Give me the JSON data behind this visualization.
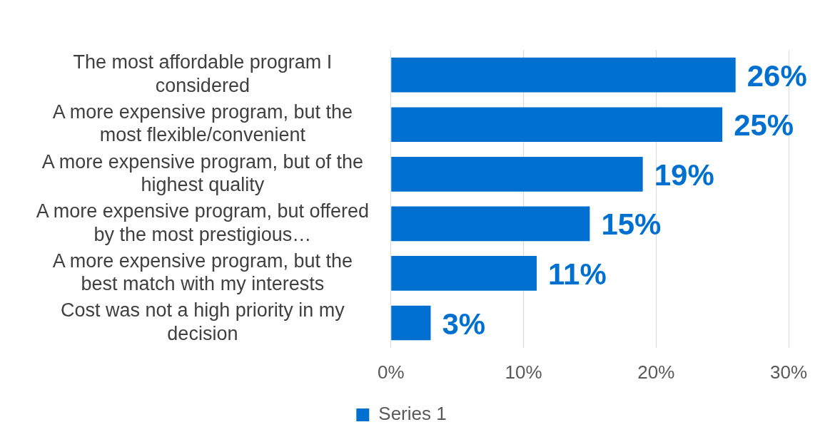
{
  "chart_data": {
    "type": "bar",
    "orientation": "horizontal",
    "categories": [
      "The most affordable program I considered",
      "A more expensive program, but the most flexible/convenient",
      "A more expensive program, but of the highest quality",
      "A more expensive program, but offered by the most prestigious…",
      "A more expensive program, but the best match with my interests",
      "Cost was not a high priority in my decision"
    ],
    "series": [
      {
        "name": "Series 1",
        "color": "#0070d0",
        "values": [
          26,
          25,
          19,
          15,
          11,
          3
        ],
        "value_labels": [
          "26%",
          "25%",
          "19%",
          "15%",
          "11%",
          "3%"
        ]
      }
    ],
    "xlim": [
      0,
      30
    ],
    "xticks": [
      {
        "value": 0,
        "label": "0%"
      },
      {
        "value": 10,
        "label": "10%"
      },
      {
        "value": 20,
        "label": "20%"
      },
      {
        "value": 30,
        "label": "30%"
      }
    ],
    "grid": "x",
    "legend": "bottom"
  }
}
